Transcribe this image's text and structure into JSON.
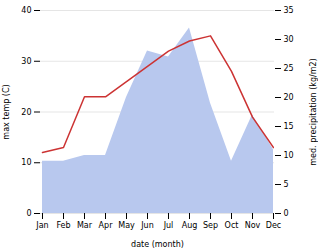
{
  "chart_data": {
    "type": "line",
    "categories": [
      "Jan",
      "Feb",
      "Mar",
      "Apr",
      "May",
      "Jun",
      "Jul",
      "Aug",
      "Sep",
      "Oct",
      "Nov",
      "Dec"
    ],
    "xlabel": "date (month)",
    "ylabel": "max temp (C)",
    "y2label": "med. precipitation (kg/m2)",
    "series": [
      {
        "type": "area",
        "axis": "y2",
        "color": "#b8c8ee",
        "values": [
          9,
          9,
          10,
          10,
          20,
          28,
          27,
          32,
          19,
          9,
          17,
          11
        ]
      },
      {
        "type": "line",
        "color": "#cc3333",
        "values": [
          12,
          13,
          23,
          23,
          26,
          29,
          32,
          34,
          35,
          28,
          19,
          13
        ]
      }
    ],
    "ylim": [
      0,
      40
    ],
    "yticks": [
      0,
      10,
      20,
      30,
      40
    ],
    "y2lim": [
      0,
      35
    ],
    "y2ticks": [
      0,
      5,
      10,
      15,
      20,
      25,
      30,
      35
    ],
    "grid": true
  }
}
